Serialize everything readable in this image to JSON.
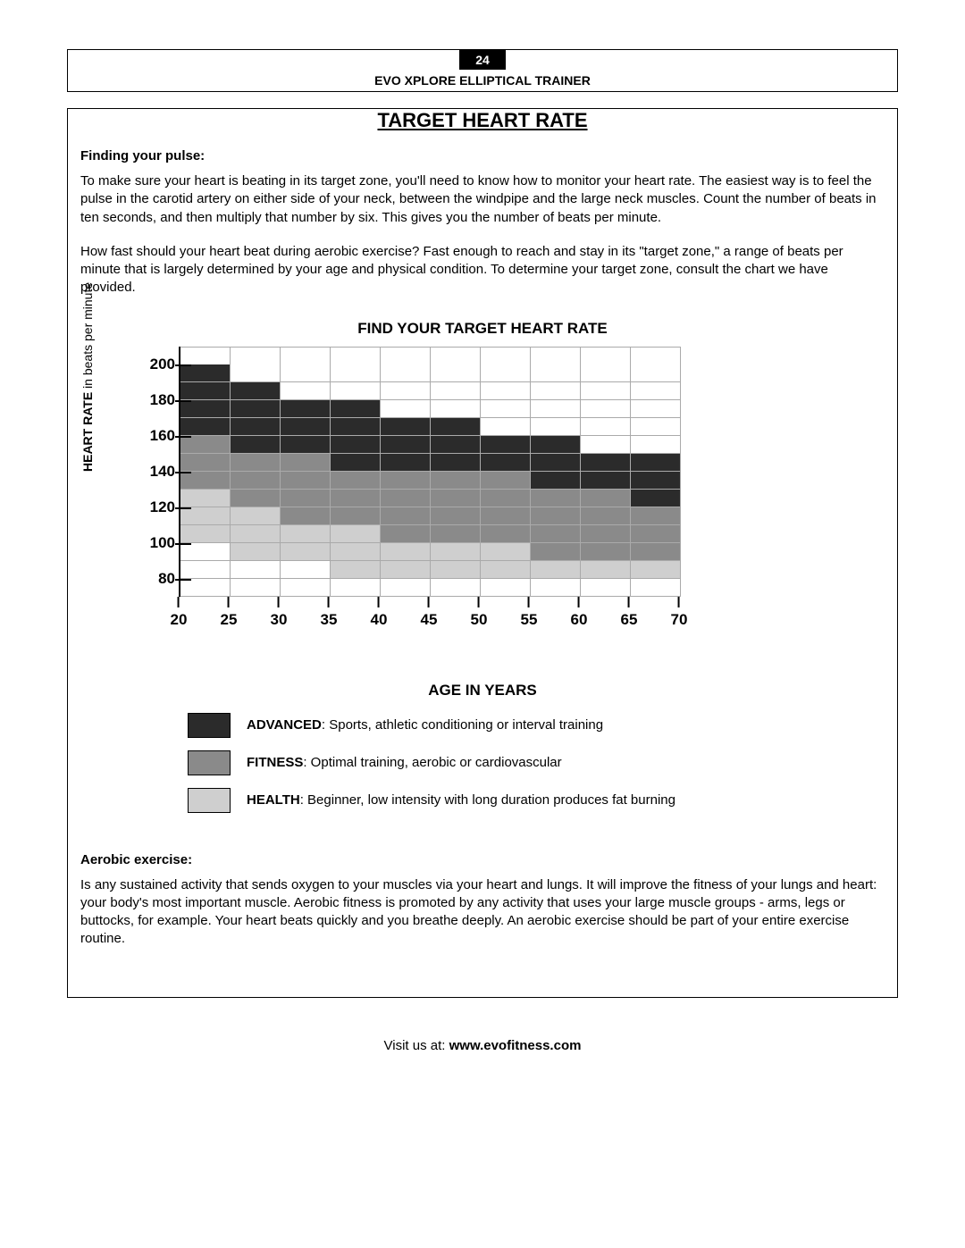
{
  "header": {
    "page_number": "24",
    "product": "EVO XPLORE ELLIPTICAL TRAINER"
  },
  "title": "TARGET HEART RATE",
  "finding_pulse": {
    "heading": "Finding your pulse",
    "p1": "To make sure your heart is beating in its target zone, you'll need to know how to monitor your heart rate.  The easiest way is to feel the pulse in the carotid artery on either side of your neck, between the windpipe and the large neck muscles.  Count the number of beats in ten seconds, and then multiply that number by six.  This gives you the number of beats per minute.",
    "p2": "How fast should your heart beat during aerobic exercise?  Fast enough to reach and stay in its \"target zone,\" a range of beats per minute that is largely determined by your age and physical condition.  To determine your target zone, consult the chart we have provided."
  },
  "chart": {
    "title": "FIND YOUR TARGET HEART RATE",
    "y_label_bold": "HEART RATE",
    "y_label_rest": " in beats per minute",
    "x_label": "AGE IN YEARS",
    "y_ticks": [
      200,
      180,
      160,
      140,
      120,
      100,
      80
    ],
    "x_ticks": [
      20,
      25,
      30,
      35,
      40,
      45,
      50,
      55,
      60,
      65,
      70
    ],
    "y_max": 210,
    "y_min": 70,
    "row_height_bpm": 10,
    "colors": {
      "advanced": "#2b2b2b",
      "fitness": "#8a8a8a",
      "health": "#cfcfcf",
      "empty": "#ffffff",
      "grid": "#aaaaaa"
    },
    "cells": [
      [
        "empty",
        "empty",
        "empty",
        "empty",
        "empty",
        "empty",
        "empty",
        "empty",
        "empty",
        "empty"
      ],
      [
        "advanced",
        "empty",
        "empty",
        "empty",
        "empty",
        "empty",
        "empty",
        "empty",
        "empty",
        "empty"
      ],
      [
        "advanced",
        "advanced",
        "empty",
        "empty",
        "empty",
        "empty",
        "empty",
        "empty",
        "empty",
        "empty"
      ],
      [
        "advanced",
        "advanced",
        "advanced",
        "advanced",
        "empty",
        "empty",
        "empty",
        "empty",
        "empty",
        "empty"
      ],
      [
        "advanced",
        "advanced",
        "advanced",
        "advanced",
        "advanced",
        "advanced",
        "empty",
        "empty",
        "empty",
        "empty"
      ],
      [
        "fitness",
        "advanced",
        "advanced",
        "advanced",
        "advanced",
        "advanced",
        "advanced",
        "advanced",
        "empty",
        "empty"
      ],
      [
        "fitness",
        "fitness",
        "fitness",
        "advanced",
        "advanced",
        "advanced",
        "advanced",
        "advanced",
        "advanced",
        "advanced"
      ],
      [
        "fitness",
        "fitness",
        "fitness",
        "fitness",
        "fitness",
        "fitness",
        "fitness",
        "advanced",
        "advanced",
        "advanced"
      ],
      [
        "health",
        "fitness",
        "fitness",
        "fitness",
        "fitness",
        "fitness",
        "fitness",
        "fitness",
        "fitness",
        "advanced"
      ],
      [
        "health",
        "health",
        "fitness",
        "fitness",
        "fitness",
        "fitness",
        "fitness",
        "fitness",
        "fitness",
        "fitness"
      ],
      [
        "health",
        "health",
        "health",
        "health",
        "fitness",
        "fitness",
        "fitness",
        "fitness",
        "fitness",
        "fitness"
      ],
      [
        "empty",
        "health",
        "health",
        "health",
        "health",
        "health",
        "health",
        "fitness",
        "fitness",
        "fitness"
      ],
      [
        "empty",
        "empty",
        "empty",
        "health",
        "health",
        "health",
        "health",
        "health",
        "health",
        "health"
      ],
      [
        "empty",
        "empty",
        "empty",
        "empty",
        "empty",
        "empty",
        "empty",
        "empty",
        "empty",
        "empty"
      ]
    ]
  },
  "legend": {
    "items": [
      {
        "key": "advanced",
        "bold": "ADVANCED",
        "text": ":  Sports, athletic conditioning or interval training"
      },
      {
        "key": "fitness",
        "bold": "FITNESS",
        "text": ":  Optimal training, aerobic or cardiovascular"
      },
      {
        "key": "health",
        "bold": "HEALTH",
        "text": ":  Beginner, low intensity with long duration produces fat burning"
      }
    ]
  },
  "aerobic": {
    "heading": "Aerobic exercise:",
    "p1": "Is any sustained activity that sends oxygen to your muscles via your heart and lungs.  It will improve the fitness of your lungs and heart:  your body's most important muscle.  Aerobic fitness is promoted by any activity that uses your large muscle groups - arms, legs or buttocks, for example.  Your heart beats quickly and you breathe deeply.  An aerobic exercise should be part of your entire exercise routine."
  },
  "footer": {
    "prefix": "Visit us at: ",
    "url": "www.evofitness.com"
  }
}
